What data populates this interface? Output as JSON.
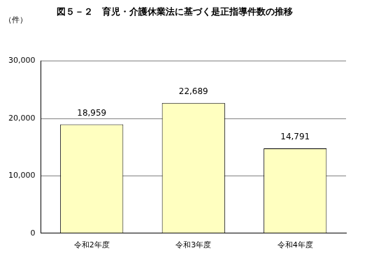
{
  "chart_data": {
    "type": "bar",
    "title": "図５－２　育児・介護休業法に基づく是正指導件数の推移",
    "y_label": "（件）",
    "categories": [
      "令和2年度",
      "令和3年度",
      "令和4年度"
    ],
    "values": [
      18959,
      22689,
      14791
    ],
    "value_labels": [
      "18,959",
      "22,689",
      "14,791"
    ],
    "data_labels": true,
    "color": "#ffffc0",
    "ylim": [
      0,
      30000
    ],
    "yticks": [
      0,
      {
        "value": 10000,
        "label": "10,000"
      },
      {
        "value": 20000,
        "label": "20,000"
      },
      {
        "value": 30000,
        "label": "30,000"
      }
    ],
    "grid": true
  }
}
